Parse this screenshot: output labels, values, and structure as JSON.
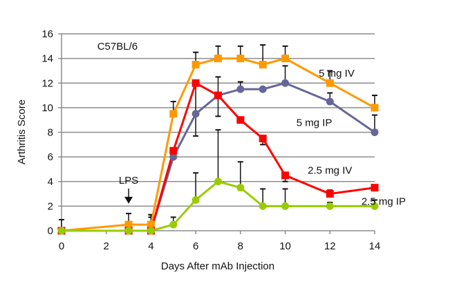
{
  "chart_data": {
    "type": "line",
    "title": "",
    "xlabel": "Days After mAb Injection",
    "ylabel": "Arthritis Score",
    "xlim": [
      0,
      14
    ],
    "ylim": [
      0,
      16
    ],
    "xticks": [
      0,
      2,
      4,
      6,
      8,
      10,
      12,
      14
    ],
    "yticks": [
      0,
      2,
      4,
      6,
      8,
      10,
      12,
      14,
      16
    ],
    "grid": "horizontal",
    "annotations": [
      {
        "text": "C57BL/6",
        "x": 2.5,
        "y": 15
      },
      {
        "text": "LPS",
        "x": 3,
        "y": 4.1,
        "arrow_to": [
          3,
          2.2
        ]
      }
    ],
    "series": [
      {
        "name": "5 mg IV",
        "color": "#FF9900",
        "marker": "square",
        "x": [
          0,
          3,
          4,
          5,
          6,
          7,
          8,
          9,
          10,
          12,
          14
        ],
        "y": [
          0,
          0.5,
          0.5,
          9.5,
          13.5,
          14,
          14,
          13.5,
          14,
          12,
          10
        ],
        "err": [
          0,
          0,
          0.8,
          1,
          1,
          1,
          1,
          1.6,
          1,
          1,
          1
        ]
      },
      {
        "name": "5 mg IP",
        "color": "#666699",
        "marker": "circle",
        "x": [
          0,
          3,
          4,
          5,
          6,
          7,
          8,
          9,
          10,
          12,
          14
        ],
        "y": [
          0,
          0,
          0,
          6,
          9.5,
          11,
          11.5,
          11.5,
          12,
          10.5,
          8
        ],
        "err": [
          0,
          0,
          1.3,
          0,
          0,
          1.5,
          0.6,
          0,
          1.4,
          0.7,
          1.4
        ]
      },
      {
        "name": "2.5 mg IV",
        "color": "#FF0000",
        "marker": "square",
        "x": [
          0,
          3,
          4,
          5,
          6,
          7,
          8,
          9,
          10,
          12,
          14
        ],
        "y": [
          0,
          0,
          0,
          6.5,
          12,
          11,
          9,
          7.5,
          4.5,
          3,
          3.5
        ],
        "err": [
          0,
          0,
          1.1,
          0,
          -4.3,
          -1.7,
          0,
          -0.5,
          -0.5,
          0.3,
          0
        ]
      },
      {
        "name": "2.5 mg IP",
        "color": "#99CC00",
        "marker": "circle",
        "x": [
          0,
          3,
          4,
          5,
          6,
          7,
          8,
          9,
          10,
          12,
          14
        ],
        "y": [
          0,
          0,
          0,
          0.5,
          2.5,
          4,
          3.5,
          2,
          2,
          2,
          2
        ],
        "err": [
          0.9,
          1.4,
          0,
          0.6,
          2.2,
          4.2,
          2.1,
          1.4,
          1.4,
          0.3,
          0.5
        ]
      }
    ],
    "series_labels": [
      {
        "text": "5 mg IV",
        "x": 12.3,
        "y": 12.8
      },
      {
        "text": "5 mg IP",
        "x": 11.3,
        "y": 8.8
      },
      {
        "text": "2.5 mg IV",
        "x": 12,
        "y": 4.9
      },
      {
        "text": "2.5 mg IP",
        "x": 14.4,
        "y": 2.4
      }
    ]
  }
}
